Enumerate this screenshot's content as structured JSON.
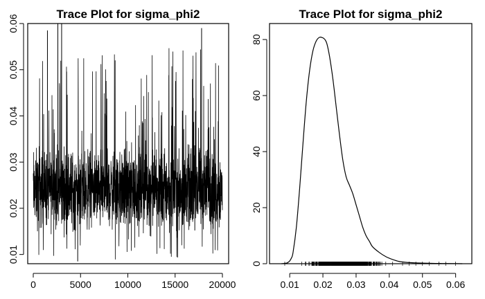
{
  "chart_data": [
    {
      "type": "line",
      "title": "Trace Plot for sigma_phi2",
      "xlabel": "",
      "ylabel": "",
      "xlim": [
        0,
        20000
      ],
      "ylim": [
        0.008,
        0.06
      ],
      "xticks": [
        0,
        5000,
        10000,
        15000,
        20000
      ],
      "xtick_labels": [
        "0",
        "5000",
        "10000",
        "15000",
        "20000"
      ],
      "yticks": [
        0.01,
        0.02,
        0.03,
        0.04,
        0.05,
        0.06
      ],
      "ytick_labels": [
        "0.01",
        "0.02",
        "0.03",
        "0.04",
        "0.05",
        "0.06"
      ],
      "grid": false,
      "color": "#000000",
      "series": [
        {
          "n_iterations": 20000,
          "typical_range": [
            0.012,
            0.035
          ],
          "central_value": 0.022,
          "min": 0.0085,
          "max": 0.06
        }
      ]
    },
    {
      "type": "line",
      "title": "Trace Plot for sigma_phi2",
      "xlabel": "",
      "ylabel": "",
      "xlim": [
        0.006,
        0.063
      ],
      "ylim": [
        0,
        82
      ],
      "xticks": [
        0.01,
        0.02,
        0.03,
        0.04,
        0.05,
        0.06
      ],
      "xtick_labels": [
        "0.01",
        "0.02",
        "0.03",
        "0.04",
        "0.05",
        "0.06"
      ],
      "yticks": [
        0,
        20,
        40,
        60,
        80
      ],
      "ytick_labels": [
        "0",
        "20",
        "40",
        "60",
        "80"
      ],
      "grid": false,
      "color": "#000000",
      "rug": true,
      "series": [
        {
          "x": [
            0.0075,
            0.009,
            0.0095,
            0.01,
            0.0105,
            0.011,
            0.012,
            0.013,
            0.014,
            0.015,
            0.016,
            0.017,
            0.018,
            0.019,
            0.02,
            0.0206,
            0.0212,
            0.022,
            0.023,
            0.024,
            0.025,
            0.026,
            0.027,
            0.028,
            0.029,
            0.03,
            0.031,
            0.032,
            0.033,
            0.034,
            0.035,
            0.037,
            0.039,
            0.041,
            0.043,
            0.045,
            0.048,
            0.052,
            0.056,
            0.06,
            0.062
          ],
          "y": [
            0,
            0.2,
            0.5,
            1.0,
            2.0,
            4.0,
            13,
            27,
            43,
            58,
            69,
            76,
            79.5,
            80.8,
            80.6,
            80.0,
            78.5,
            74,
            66,
            56,
            46,
            37,
            31,
            28,
            25,
            21,
            17,
            13,
            10,
            8,
            6,
            4,
            2.5,
            1.5,
            0.8,
            0.5,
            0.3,
            0.15,
            0.08,
            0.03,
            0
          ]
        }
      ]
    }
  ]
}
